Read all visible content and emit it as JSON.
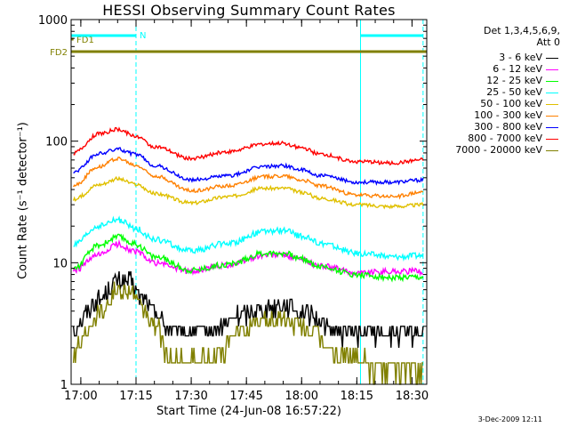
{
  "chart_data": {
    "type": "line",
    "title": "HESSI Observing Summary Count Rates",
    "xlabel": "Start Time (24-Jun-08 16:57:22)",
    "ylabel": "Count Rate (s⁻¹ detector⁻¹)",
    "yscale": "log",
    "ylim": [
      1,
      1000
    ],
    "xlim": [
      "16:57:22",
      "18:34:00"
    ],
    "x_ticks": [
      "17:00",
      "17:15",
      "17:30",
      "17:45",
      "18:00",
      "18:15",
      "18:30"
    ],
    "y_ticks": [
      "1",
      "10",
      "100",
      "1000"
    ],
    "grid": false,
    "legend_position": "right",
    "legend_title_lines": [
      "Det 1,3,4,5,6,9,",
      "Att 0"
    ],
    "series": [
      {
        "name": "3 - 6 keV",
        "color": "#000000",
        "x": [
          "16:58",
          "17:05",
          "17:10",
          "17:13",
          "17:17",
          "17:20",
          "17:25",
          "17:35",
          "17:45",
          "17:50",
          "17:55",
          "18:00",
          "18:05",
          "18:10",
          "18:20",
          "18:30",
          "18:33"
        ],
        "y": [
          3,
          5,
          7,
          7,
          5,
          4,
          2.7,
          2.7,
          3.8,
          4.3,
          4.5,
          4.0,
          3.3,
          2.7,
          2.6,
          2.6,
          2.6
        ]
      },
      {
        "name": "6 - 12 keV",
        "color": "#ff00ff",
        "x": [
          "16:58",
          "17:05",
          "17:10",
          "17:15",
          "17:20",
          "17:30",
          "17:40",
          "17:50",
          "17:55",
          "18:00",
          "18:05",
          "18:15",
          "18:25",
          "18:33"
        ],
        "y": [
          8.6,
          11.5,
          14.2,
          12.3,
          10.0,
          8.5,
          9.6,
          11.5,
          11.6,
          10.6,
          9.4,
          8.3,
          8.5,
          8.5
        ]
      },
      {
        "name": "12 - 25 keV",
        "color": "#00ff00",
        "x": [
          "16:58",
          "17:05",
          "17:10",
          "17:15",
          "17:20",
          "17:30",
          "17:40",
          "17:50",
          "17:55",
          "18:00",
          "18:05",
          "18:15",
          "18:25",
          "18:33"
        ],
        "y": [
          9.0,
          14.0,
          16.3,
          14.2,
          11.2,
          8.7,
          9.7,
          12.0,
          12.0,
          10.8,
          9.3,
          8.0,
          7.5,
          7.5
        ]
      },
      {
        "name": "25 - 50 keV",
        "color": "#00ffff",
        "x": [
          "16:58",
          "17:05",
          "17:10",
          "17:15",
          "17:20",
          "17:30",
          "17:40",
          "17:50",
          "17:55",
          "18:00",
          "18:05",
          "18:15",
          "18:25",
          "18:33"
        ],
        "y": [
          14.0,
          20.0,
          22.5,
          19.0,
          15.5,
          12.5,
          14.5,
          18.0,
          18.5,
          16.5,
          14.5,
          12.0,
          11.2,
          11.5
        ]
      },
      {
        "name": "50 - 100 keV",
        "color": "#e0c000",
        "x": [
          "16:58",
          "17:05",
          "17:10",
          "17:15",
          "17:20",
          "17:30",
          "17:40",
          "17:50",
          "17:55",
          "18:00",
          "18:05",
          "18:15",
          "18:25",
          "18:33"
        ],
        "y": [
          33,
          44,
          49,
          44,
          37,
          31,
          35,
          41,
          41,
          38,
          34,
          30,
          29,
          30
        ]
      },
      {
        "name": "100 - 300 keV",
        "color": "#ff8000",
        "x": [
          "16:58",
          "17:05",
          "17:10",
          "17:15",
          "17:20",
          "17:30",
          "17:40",
          "17:50",
          "17:55",
          "18:00",
          "18:05",
          "18:15",
          "18:25",
          "18:33"
        ],
        "y": [
          43,
          62,
          72,
          63,
          52,
          39,
          43,
          51,
          52,
          48,
          43,
          36,
          35,
          38
        ]
      },
      {
        "name": "300 - 800 keV",
        "color": "#0000ff",
        "x": [
          "16:58",
          "17:05",
          "17:10",
          "17:15",
          "17:20",
          "17:30",
          "17:40",
          "17:50",
          "17:55",
          "18:00",
          "18:05",
          "18:15",
          "18:25",
          "18:33"
        ],
        "y": [
          56,
          79,
          86,
          78,
          63,
          48,
          52,
          62,
          63,
          58,
          52,
          46,
          46,
          48
        ]
      },
      {
        "name": "800 - 7000 keV",
        "color": "#ff0000",
        "x": [
          "16:58",
          "17:05",
          "17:10",
          "17:15",
          "17:20",
          "17:30",
          "17:40",
          "17:50",
          "17:55",
          "18:00",
          "18:05",
          "18:15",
          "18:25",
          "18:33"
        ],
        "y": [
          80,
          115,
          125,
          110,
          90,
          72,
          82,
          95,
          96,
          88,
          78,
          68,
          66,
          70
        ]
      },
      {
        "name": "7000 - 20000 keV",
        "color": "#808000",
        "x": [
          "16:58",
          "17:05",
          "17:10",
          "17:13",
          "17:17",
          "17:20",
          "17:25",
          "17:35",
          "17:45",
          "17:50",
          "17:55",
          "18:00",
          "18:05",
          "18:10",
          "18:20",
          "18:30",
          "18:33"
        ],
        "y": [
          2.0,
          4.0,
          6.0,
          6.0,
          4.0,
          3.0,
          1.5,
          1.6,
          2.8,
          3.3,
          3.5,
          3.0,
          2.4,
          1.8,
          1.4,
          1.4,
          1.4
        ]
      }
    ],
    "flag_bars": [
      {
        "label": "FD2",
        "color": "#808000",
        "start": "16:57:22",
        "end": "18:34:00"
      },
      {
        "label": "FD1",
        "color": "#808000",
        "start": "16:57:22",
        "end": "16:58:00"
      },
      {
        "label": "N",
        "color": "#00ffff",
        "start": "16:57:22",
        "end": "17:15:00"
      },
      {
        "label": "",
        "color": "#00ffff",
        "start": "18:16:00",
        "end": "18:33:00"
      }
    ],
    "vertical_markers": [
      {
        "time": "16:57:22",
        "style": "solid",
        "color": "#00ffff"
      },
      {
        "time": "17:15:00",
        "style": "dashed",
        "color": "#00ffff"
      },
      {
        "time": "18:16:00",
        "style": "solid",
        "color": "#00ffff"
      },
      {
        "time": "18:33:00",
        "style": "dashed",
        "color": "#00ffff"
      }
    ]
  },
  "footer": "3-Dec-2009 12:11"
}
